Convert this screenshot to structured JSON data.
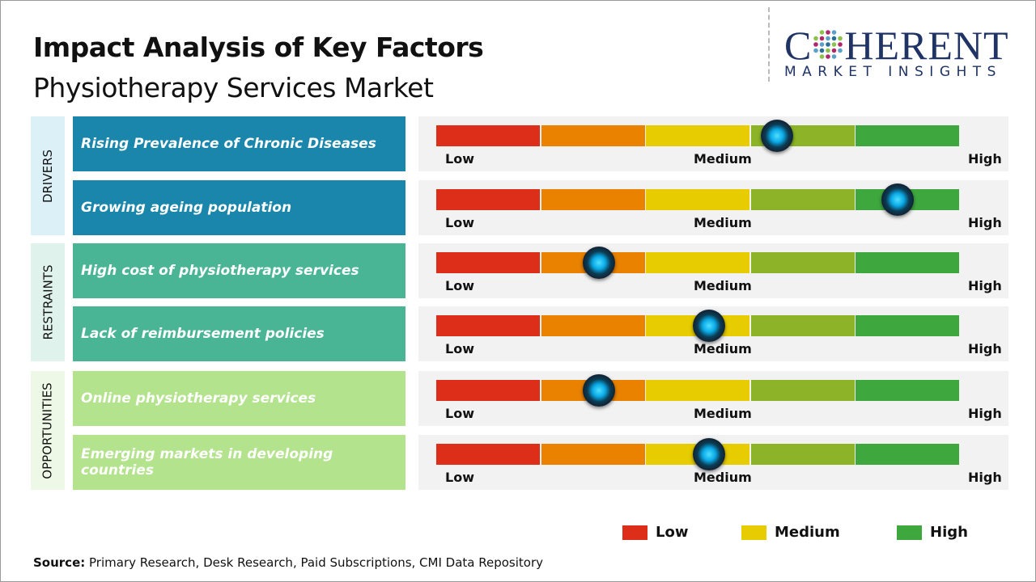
{
  "title": "Impact Analysis of Key Factors",
  "subtitle": "Physiotherapy Services Market",
  "logo": {
    "line1": "COHERENT",
    "line2": "MARKET INSIGHTS"
  },
  "scale_labels": {
    "low": "Low",
    "medium": "Medium",
    "high": "High"
  },
  "colors": {
    "segments": [
      "#dd2e1a",
      "#ea8200",
      "#e6cc00",
      "#8db428",
      "#3ea83e"
    ],
    "drivers": "#1b86ab",
    "drivers_side": "#dcf0f8",
    "restraints": "#4ab595",
    "restraints_side": "#dff2ec",
    "opportunities": "#b3e38c",
    "opportunities_side": "#eef8e6"
  },
  "chart_data": {
    "type": "gauge",
    "scale": [
      "Low",
      "Medium",
      "High"
    ],
    "range": [
      0,
      1
    ],
    "categories": [
      {
        "name": "DRIVERS",
        "key": "drivers",
        "factors": [
          {
            "label": "Rising Prevalence of Chronic Diseases",
            "value": 0.65
          },
          {
            "label": "Growing ageing population",
            "value": 0.88
          }
        ]
      },
      {
        "name": "RESTRAINTS",
        "key": "restraints",
        "factors": [
          {
            "label": "High cost of physiotherapy services",
            "value": 0.31
          },
          {
            "label": "Lack of reimbursement policies",
            "value": 0.52
          }
        ]
      },
      {
        "name": "OPPORTUNITIES",
        "key": "opportunities",
        "factors": [
          {
            "label": "Online physiotherapy services",
            "value": 0.31
          },
          {
            "label": "Emerging markets in developing countries",
            "value": 0.52
          }
        ]
      }
    ]
  },
  "legend": [
    {
      "label": "Low",
      "color": "#dd2e1a"
    },
    {
      "label": "Medium",
      "color": "#e6cc00"
    },
    {
      "label": "High",
      "color": "#3ea83e"
    }
  ],
  "source": {
    "prefix": "Source:",
    "text": " Primary Research, Desk Research, Paid Subscriptions, CMI Data Repository"
  }
}
